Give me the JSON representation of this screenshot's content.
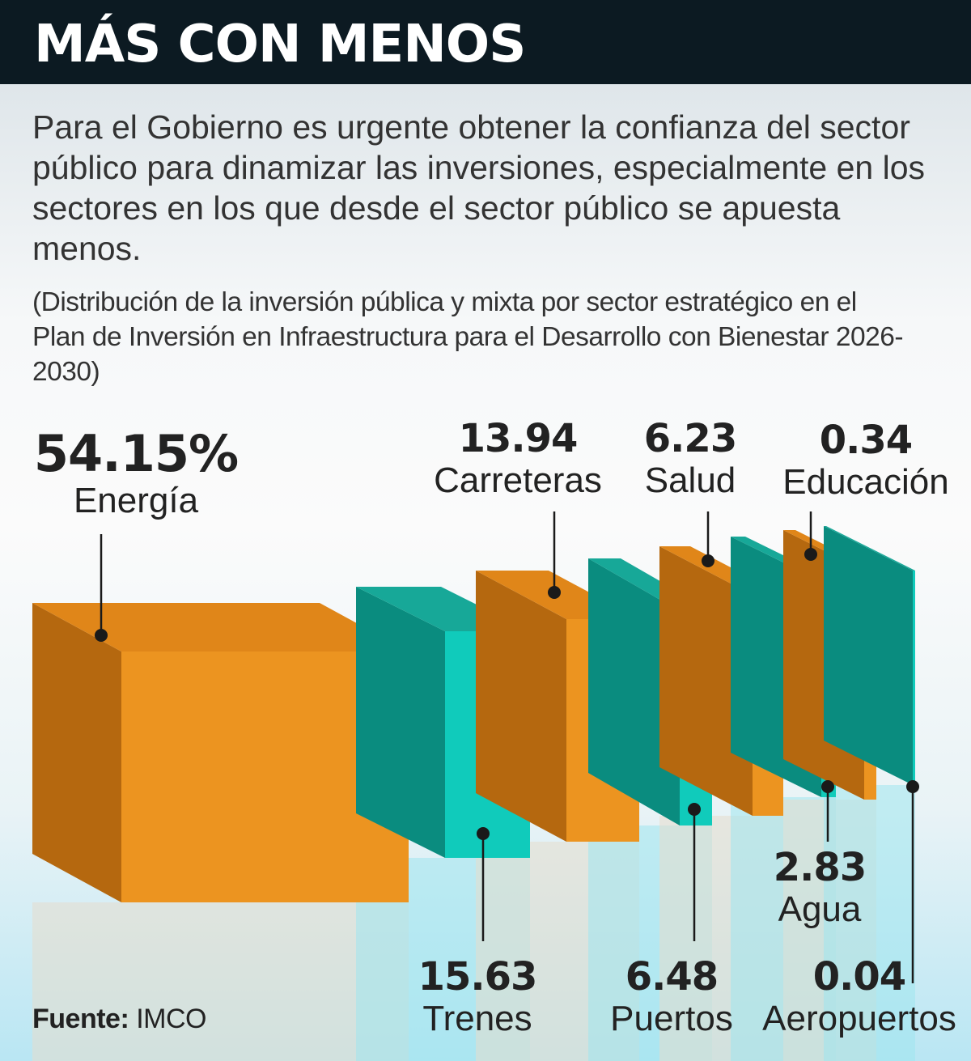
{
  "header": {
    "title": "MÁS CON MENOS"
  },
  "intro": "Para el Gobierno es urgente obtener la confianza del sector público para dinamizar las inversiones, especialmente en los sectores en los que desde el sector público se apuesta menos.",
  "subtitle": "(Distribución de la inversión pública y mixta por sector estratégico en el Plan de Inversión en Infraestructura para el Desarrollo con Bienestar 2026-2030)",
  "source": {
    "label": "Fuente:",
    "value": "IMCO"
  },
  "colors": {
    "orange": "#ec9420",
    "teal": "#10cbbb",
    "header": "#0c1a22"
  },
  "chart_data": {
    "type": "bar",
    "style": "3d-boxes",
    "unit": "%",
    "categories": [
      "Energía",
      "Trenes",
      "Carreteras",
      "Puertos",
      "Salud",
      "Agua",
      "Educación",
      "Aeropuertos"
    ],
    "values": [
      54.15,
      15.63,
      13.94,
      6.48,
      6.23,
      2.83,
      0.34,
      0.04
    ],
    "labels": [
      "54.15%",
      "15.63",
      "13.94",
      "6.48",
      "6.23",
      "2.83",
      "0.34",
      "0.04"
    ],
    "bar_colors": [
      "orange",
      "teal",
      "orange",
      "teal",
      "orange",
      "teal",
      "orange",
      "teal"
    ]
  }
}
